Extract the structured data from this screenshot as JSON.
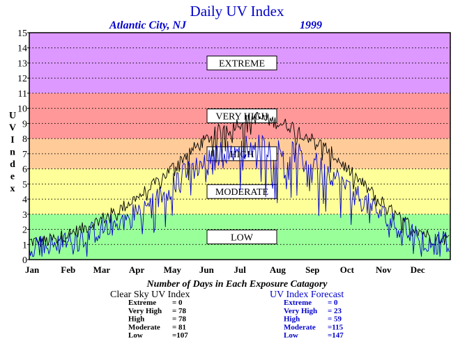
{
  "chart_data": {
    "type": "line",
    "title": "Daily UV Index",
    "subtitle_location": "Atlantic City, NJ",
    "subtitle_year": "1999",
    "ylabel": "UV Index",
    "ylim": [
      0,
      15
    ],
    "yticks": [
      0,
      1,
      2,
      3,
      4,
      5,
      6,
      7,
      8,
      9,
      10,
      11,
      12,
      13,
      14,
      15
    ],
    "month_labels": [
      "Jan",
      "Feb",
      "Mar",
      "Apr",
      "May",
      "Jun",
      "Jul",
      "Aug",
      "Sep",
      "Oct",
      "Nov",
      "Dec"
    ],
    "grid": true,
    "categories": [
      {
        "name": "LOW",
        "min": 0,
        "max": 3,
        "color": "#99ff99"
      },
      {
        "name": "MODERATE",
        "min": 3,
        "max": 6,
        "color": "#ffff99"
      },
      {
        "name": "HIGH",
        "min": 6,
        "max": 8,
        "color": "#ffcc99"
      },
      {
        "name": "VERY HIGH",
        "min": 8,
        "max": 11,
        "color": "#ff9999"
      },
      {
        "name": "EXTREME",
        "min": 11,
        "max": 15,
        "color": "#dd99ff"
      }
    ],
    "series": [
      {
        "name": "Clear Sky UV Index",
        "color": "#000000",
        "monthly_values": [
          1.2,
          2.0,
          3.2,
          4.8,
          7.0,
          8.7,
          9.4,
          8.8,
          7.3,
          5.0,
          2.8,
          1.4
        ]
      },
      {
        "name": "UV Index Forecast",
        "color": "#0000cc",
        "monthly_values": [
          0.9,
          1.5,
          2.4,
          3.7,
          5.8,
          7.1,
          7.6,
          7.1,
          5.9,
          3.9,
          2.2,
          1.1
        ]
      }
    ],
    "summary": {
      "caption": "Number of Days in Each Exposure Catagory",
      "clear_sky": {
        "title": "Clear Sky UV Index",
        "rows": [
          {
            "label": "Extreme",
            "value": "=    0"
          },
          {
            "label": "Very High",
            "value": "=  78"
          },
          {
            "label": "High",
            "value": "=  78"
          },
          {
            "label": "Moderate",
            "value": "=  81"
          },
          {
            "label": "Low",
            "value": "=107"
          }
        ]
      },
      "forecast": {
        "title": "UV Index Forecast",
        "rows": [
          {
            "label": "Extreme",
            "value": "=    0"
          },
          {
            "label": "Very High",
            "value": "=  23"
          },
          {
            "label": "High",
            "value": "=  59"
          },
          {
            "label": "Moderate",
            "value": "=115"
          },
          {
            "label": "Low",
            "value": "=147"
          }
        ]
      }
    }
  }
}
